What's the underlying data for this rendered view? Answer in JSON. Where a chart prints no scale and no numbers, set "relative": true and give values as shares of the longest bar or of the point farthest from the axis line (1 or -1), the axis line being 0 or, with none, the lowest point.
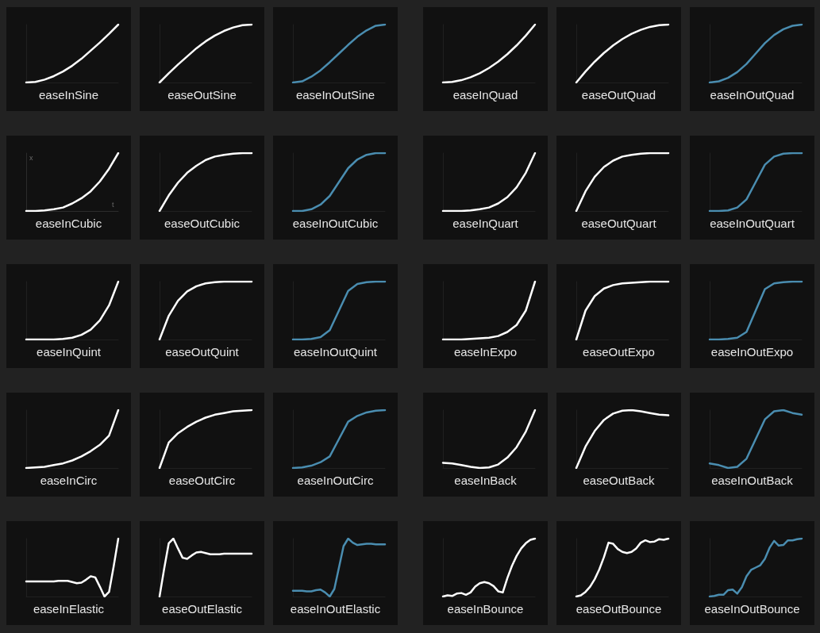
{
  "chart_data": [
    {
      "type": "line",
      "title": "easeInSine",
      "color": "#ffffff",
      "relative": true,
      "categories": [
        null,
        null,
        null,
        null,
        null,
        null,
        null,
        null,
        null,
        null,
        null
      ],
      "values": [
        0,
        0.01,
        0.05,
        0.11,
        0.19,
        0.29,
        0.41,
        0.55,
        0.69,
        0.84,
        1
      ]
    },
    {
      "type": "line",
      "title": "easeOutSine",
      "color": "#ffffff",
      "relative": true,
      "categories": [
        null,
        null,
        null,
        null,
        null,
        null,
        null,
        null,
        null,
        null,
        null
      ],
      "values": [
        0,
        0.16,
        0.31,
        0.45,
        0.59,
        0.71,
        0.81,
        0.89,
        0.95,
        0.99,
        1
      ]
    },
    {
      "type": "line",
      "title": "easeInOutSine",
      "color": "#4a8db0",
      "relative": true,
      "categories": [
        null,
        null,
        null,
        null,
        null,
        null,
        null,
        null,
        null,
        null,
        null
      ],
      "values": [
        0,
        0.02,
        0.1,
        0.21,
        0.35,
        0.5,
        0.65,
        0.79,
        0.9,
        0.98,
        1
      ]
    },
    {
      "type": "line",
      "title": "easeInQuad",
      "color": "#ffffff",
      "relative": true,
      "categories": [
        null,
        null,
        null,
        null,
        null,
        null,
        null,
        null,
        null,
        null,
        null
      ],
      "values": [
        0,
        0.01,
        0.04,
        0.09,
        0.16,
        0.25,
        0.36,
        0.49,
        0.64,
        0.81,
        1
      ]
    },
    {
      "type": "line",
      "title": "easeOutQuad",
      "color": "#ffffff",
      "relative": true,
      "categories": [
        null,
        null,
        null,
        null,
        null,
        null,
        null,
        null,
        null,
        null,
        null
      ],
      "values": [
        0,
        0.19,
        0.36,
        0.51,
        0.64,
        0.75,
        0.84,
        0.91,
        0.96,
        0.99,
        1
      ]
    },
    {
      "type": "line",
      "title": "easeInOutQuad",
      "color": "#4a8db0",
      "relative": true,
      "categories": [
        null,
        null,
        null,
        null,
        null,
        null,
        null,
        null,
        null,
        null,
        null
      ],
      "values": [
        0,
        0.02,
        0.08,
        0.18,
        0.32,
        0.5,
        0.68,
        0.82,
        0.92,
        0.98,
        1
      ]
    },
    {
      "type": "line",
      "title": "easeInCubic",
      "color": "#ffffff",
      "xlabel": "t",
      "ylabel": "x",
      "relative": true,
      "categories": [
        null,
        null,
        null,
        null,
        null,
        null,
        null,
        null,
        null,
        null,
        null
      ],
      "values": [
        0,
        0,
        0.01,
        0.03,
        0.06,
        0.13,
        0.22,
        0.34,
        0.51,
        0.73,
        1
      ]
    },
    {
      "type": "line",
      "title": "easeOutCubic",
      "color": "#ffffff",
      "relative": true,
      "categories": [
        null,
        null,
        null,
        null,
        null,
        null,
        null,
        null,
        null,
        null,
        null
      ],
      "values": [
        0,
        0.27,
        0.49,
        0.66,
        0.78,
        0.88,
        0.94,
        0.97,
        0.99,
        1,
        1
      ]
    },
    {
      "type": "line",
      "title": "easeInOutCubic",
      "color": "#4a8db0",
      "relative": true,
      "categories": [
        null,
        null,
        null,
        null,
        null,
        null,
        null,
        null,
        null,
        null,
        null
      ],
      "values": [
        0,
        0,
        0.03,
        0.11,
        0.26,
        0.5,
        0.74,
        0.89,
        0.97,
        1,
        1
      ]
    },
    {
      "type": "line",
      "title": "easeInQuart",
      "color": "#ffffff",
      "relative": true,
      "categories": [
        null,
        null,
        null,
        null,
        null,
        null,
        null,
        null,
        null,
        null,
        null
      ],
      "values": [
        0,
        0,
        0,
        0.01,
        0.03,
        0.06,
        0.13,
        0.24,
        0.41,
        0.66,
        1
      ]
    },
    {
      "type": "line",
      "title": "easeOutQuart",
      "color": "#ffffff",
      "relative": true,
      "categories": [
        null,
        null,
        null,
        null,
        null,
        null,
        null,
        null,
        null,
        null,
        null
      ],
      "values": [
        0,
        0.34,
        0.59,
        0.76,
        0.87,
        0.94,
        0.97,
        0.99,
        1,
        1,
        1
      ]
    },
    {
      "type": "line",
      "title": "easeInOutQuart",
      "color": "#4a8db0",
      "relative": true,
      "categories": [
        null,
        null,
        null,
        null,
        null,
        null,
        null,
        null,
        null,
        null,
        null
      ],
      "values": [
        0,
        0,
        0.01,
        0.06,
        0.2,
        0.5,
        0.8,
        0.94,
        0.99,
        1,
        1
      ]
    },
    {
      "type": "line",
      "title": "easeInQuint",
      "color": "#ffffff",
      "relative": true,
      "categories": [
        null,
        null,
        null,
        null,
        null,
        null,
        null,
        null,
        null,
        null,
        null
      ],
      "values": [
        0,
        0,
        0,
        0,
        0.01,
        0.03,
        0.08,
        0.17,
        0.33,
        0.59,
        1
      ]
    },
    {
      "type": "line",
      "title": "easeOutQuint",
      "color": "#ffffff",
      "relative": true,
      "categories": [
        null,
        null,
        null,
        null,
        null,
        null,
        null,
        null,
        null,
        null,
        null
      ],
      "values": [
        0,
        0.41,
        0.67,
        0.83,
        0.92,
        0.97,
        0.99,
        1,
        1,
        1,
        1
      ]
    },
    {
      "type": "line",
      "title": "easeInOutQuint",
      "color": "#4a8db0",
      "relative": true,
      "categories": [
        null,
        null,
        null,
        null,
        null,
        null,
        null,
        null,
        null,
        null,
        null
      ],
      "values": [
        0,
        0,
        0.01,
        0.04,
        0.16,
        0.5,
        0.84,
        0.96,
        0.99,
        1,
        1
      ]
    },
    {
      "type": "line",
      "title": "easeInExpo",
      "color": "#ffffff",
      "relative": true,
      "categories": [
        null,
        null,
        null,
        null,
        null,
        null,
        null,
        null,
        null,
        null,
        null
      ],
      "values": [
        0,
        0,
        0,
        0.01,
        0.02,
        0.03,
        0.06,
        0.13,
        0.25,
        0.5,
        1
      ]
    },
    {
      "type": "line",
      "title": "easeOutExpo",
      "color": "#ffffff",
      "relative": true,
      "categories": [
        null,
        null,
        null,
        null,
        null,
        null,
        null,
        null,
        null,
        null,
        null
      ],
      "values": [
        0,
        0.5,
        0.75,
        0.88,
        0.94,
        0.97,
        0.98,
        0.99,
        1,
        1,
        1
      ]
    },
    {
      "type": "line",
      "title": "easeInOutExpo",
      "color": "#4a8db0",
      "relative": true,
      "categories": [
        null,
        null,
        null,
        null,
        null,
        null,
        null,
        null,
        null,
        null,
        null
      ],
      "values": [
        0,
        0,
        0.01,
        0.03,
        0.13,
        0.5,
        0.87,
        0.97,
        0.99,
        1,
        1
      ]
    },
    {
      "type": "line",
      "title": "easeInCirc",
      "color": "#ffffff",
      "relative": true,
      "categories": [
        null,
        null,
        null,
        null,
        null,
        null,
        null,
        null,
        null,
        null,
        null
      ],
      "values": [
        0,
        0.01,
        0.02,
        0.05,
        0.08,
        0.13,
        0.2,
        0.29,
        0.4,
        0.56,
        1
      ]
    },
    {
      "type": "line",
      "title": "easeOutCirc",
      "color": "#ffffff",
      "relative": true,
      "categories": [
        null,
        null,
        null,
        null,
        null,
        null,
        null,
        null,
        null,
        null,
        null
      ],
      "values": [
        0,
        0.44,
        0.6,
        0.71,
        0.8,
        0.87,
        0.92,
        0.95,
        0.98,
        0.99,
        1
      ]
    },
    {
      "type": "line",
      "title": "easeInOutCirc",
      "color": "#4a8db0",
      "relative": true,
      "categories": [
        null,
        null,
        null,
        null,
        null,
        null,
        null,
        null,
        null,
        null,
        null
      ],
      "values": [
        0,
        0.01,
        0.04,
        0.1,
        0.2,
        0.5,
        0.8,
        0.9,
        0.96,
        0.99,
        1
      ]
    },
    {
      "type": "line",
      "title": "easeInBack",
      "color": "#ffffff",
      "relative": true,
      "categories": [
        null,
        null,
        null,
        null,
        null,
        null,
        null,
        null,
        null,
        null,
        null
      ],
      "values": [
        0.09,
        0.08,
        0.05,
        0.02,
        0,
        0.01,
        0.06,
        0.18,
        0.36,
        0.63,
        1
      ]
    },
    {
      "type": "line",
      "title": "easeOutBack",
      "color": "#ffffff",
      "relative": true,
      "categories": [
        null,
        null,
        null,
        null,
        null,
        null,
        null,
        null,
        null,
        null,
        null
      ],
      "values": [
        0,
        0.37,
        0.64,
        0.83,
        0.94,
        0.99,
        1,
        0.98,
        0.95,
        0.92,
        0.91
      ]
    },
    {
      "type": "line",
      "title": "easeInOutBack",
      "color": "#4a8db0",
      "relative": true,
      "categories": [
        null,
        null,
        null,
        null,
        null,
        null,
        null,
        null,
        null,
        null,
        null
      ],
      "values": [
        0.08,
        0.05,
        0,
        0.02,
        0.16,
        0.5,
        0.84,
        0.98,
        1,
        0.95,
        0.92
      ]
    },
    {
      "type": "line",
      "title": "easeInElastic",
      "color": "#ffffff",
      "relative": true,
      "categories": [
        null,
        null,
        null,
        null,
        null,
        null,
        null,
        null,
        null,
        null,
        null,
        null,
        null,
        null,
        null,
        null,
        null,
        null,
        null,
        null,
        null
      ],
      "values": [
        0.26,
        0.26,
        0.26,
        0.26,
        0.26,
        0.26,
        0.26,
        0.27,
        0.27,
        0.27,
        0.25,
        0.23,
        0.24,
        0.29,
        0.35,
        0.33,
        0.17,
        0,
        0.08,
        0.52,
        1
      ]
    },
    {
      "type": "line",
      "title": "easeOutElastic",
      "color": "#ffffff",
      "relative": true,
      "categories": [
        null,
        null,
        null,
        null,
        null,
        null,
        null,
        null,
        null,
        null,
        null,
        null,
        null,
        null,
        null,
        null,
        null,
        null,
        null,
        null,
        null
      ],
      "values": [
        0,
        0.48,
        0.92,
        1,
        0.83,
        0.67,
        0.65,
        0.71,
        0.76,
        0.77,
        0.75,
        0.73,
        0.73,
        0.73,
        0.74,
        0.74,
        0.74,
        0.74,
        0.74,
        0.74,
        0.74
      ]
    },
    {
      "type": "line",
      "title": "easeInOutElastic",
      "color": "#4a8db0",
      "relative": true,
      "categories": [
        null,
        null,
        null,
        null,
        null,
        null,
        null,
        null,
        null,
        null,
        null,
        null,
        null,
        null,
        null,
        null,
        null,
        null,
        null,
        null,
        null
      ],
      "values": [
        0.1,
        0.1,
        0.1,
        0.09,
        0.09,
        0.11,
        0.12,
        0.07,
        0,
        0.13,
        0.5,
        0.87,
        1,
        0.93,
        0.89,
        0.9,
        0.91,
        0.91,
        0.9,
        0.9,
        0.9
      ]
    },
    {
      "type": "line",
      "title": "easeInBounce",
      "color": "#ffffff",
      "relative": true,
      "categories": [
        null,
        null,
        null,
        null,
        null,
        null,
        null,
        null,
        null,
        null,
        null,
        null,
        null,
        null,
        null,
        null,
        null,
        null,
        null,
        null,
        null
      ],
      "values": [
        0,
        0.02,
        0.01,
        0.05,
        0.06,
        0.03,
        0.07,
        0.17,
        0.23,
        0.25,
        0.23,
        0.18,
        0.09,
        0.07,
        0.32,
        0.53,
        0.7,
        0.83,
        0.92,
        0.98,
        1
      ]
    },
    {
      "type": "line",
      "title": "easeOutBounce",
      "color": "#ffffff",
      "relative": true,
      "categories": [
        null,
        null,
        null,
        null,
        null,
        null,
        null,
        null,
        null,
        null,
        null,
        null,
        null,
        null,
        null,
        null,
        null,
        null,
        null,
        null,
        null
      ],
      "values": [
        0,
        0.02,
        0.08,
        0.17,
        0.3,
        0.47,
        0.68,
        0.93,
        0.91,
        0.82,
        0.77,
        0.75,
        0.77,
        0.83,
        0.93,
        0.97,
        0.94,
        0.95,
        0.99,
        0.98,
        1
      ]
    },
    {
      "type": "line",
      "title": "easeInOutBounce",
      "color": "#4a8db0",
      "relative": true,
      "categories": [
        null,
        null,
        null,
        null,
        null,
        null,
        null,
        null,
        null,
        null,
        null,
        null,
        null,
        null,
        null,
        null,
        null,
        null,
        null,
        null,
        null
      ],
      "values": [
        0,
        0.01,
        0.03,
        0.03,
        0.11,
        0.12,
        0.05,
        0.16,
        0.35,
        0.46,
        0.5,
        0.54,
        0.65,
        0.84,
        0.96,
        0.88,
        0.89,
        0.97,
        0.97,
        0.99,
        1
      ]
    }
  ]
}
